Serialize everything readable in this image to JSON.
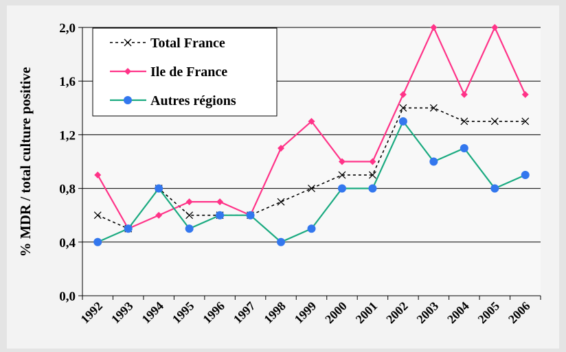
{
  "chart_data": {
    "type": "line",
    "y_label": "% MDR / total culture positive",
    "categories": [
      "1992",
      "1993",
      "1994",
      "1995",
      "1996",
      "1997",
      "1998",
      "1999",
      "2000",
      "2001",
      "2002",
      "2003",
      "2004",
      "2005",
      "2006"
    ],
    "series": [
      {
        "name": "Total France",
        "color": "#000000",
        "marker": "x",
        "dash": true,
        "values": [
          0.6,
          0.5,
          0.8,
          0.6,
          0.6,
          0.6,
          0.7,
          0.8,
          0.9,
          0.9,
          1.4,
          1.4,
          1.3,
          1.3,
          1.3
        ]
      },
      {
        "name": "Ile de France",
        "color": "#ff3388",
        "marker": "diamond",
        "dash": false,
        "values": [
          0.9,
          0.5,
          0.6,
          0.7,
          0.7,
          0.6,
          1.1,
          1.3,
          1.0,
          1.0,
          1.5,
          2.0,
          1.5,
          2.0,
          1.5
        ]
      },
      {
        "name": "Autres régions",
        "color": "#1aaa80",
        "marker_color": "#3377ee",
        "marker": "circle",
        "dash": false,
        "values": [
          0.4,
          0.5,
          0.8,
          0.5,
          0.6,
          0.6,
          0.4,
          0.5,
          0.8,
          0.8,
          1.3,
          1.0,
          1.1,
          0.8,
          0.9
        ]
      }
    ],
    "ylim": [
      0,
      2.0
    ],
    "yticks": [
      {
        "value": 0,
        "label": "0,0"
      },
      {
        "value": 0.4,
        "label": "0,4"
      },
      {
        "value": 0.8,
        "label": "0,8"
      },
      {
        "value": 1.2,
        "label": "1,2"
      },
      {
        "value": 1.6,
        "label": "1,6"
      },
      {
        "value": 2.0,
        "label": "2,0"
      }
    ],
    "grid": true,
    "legend": "upper left"
  }
}
